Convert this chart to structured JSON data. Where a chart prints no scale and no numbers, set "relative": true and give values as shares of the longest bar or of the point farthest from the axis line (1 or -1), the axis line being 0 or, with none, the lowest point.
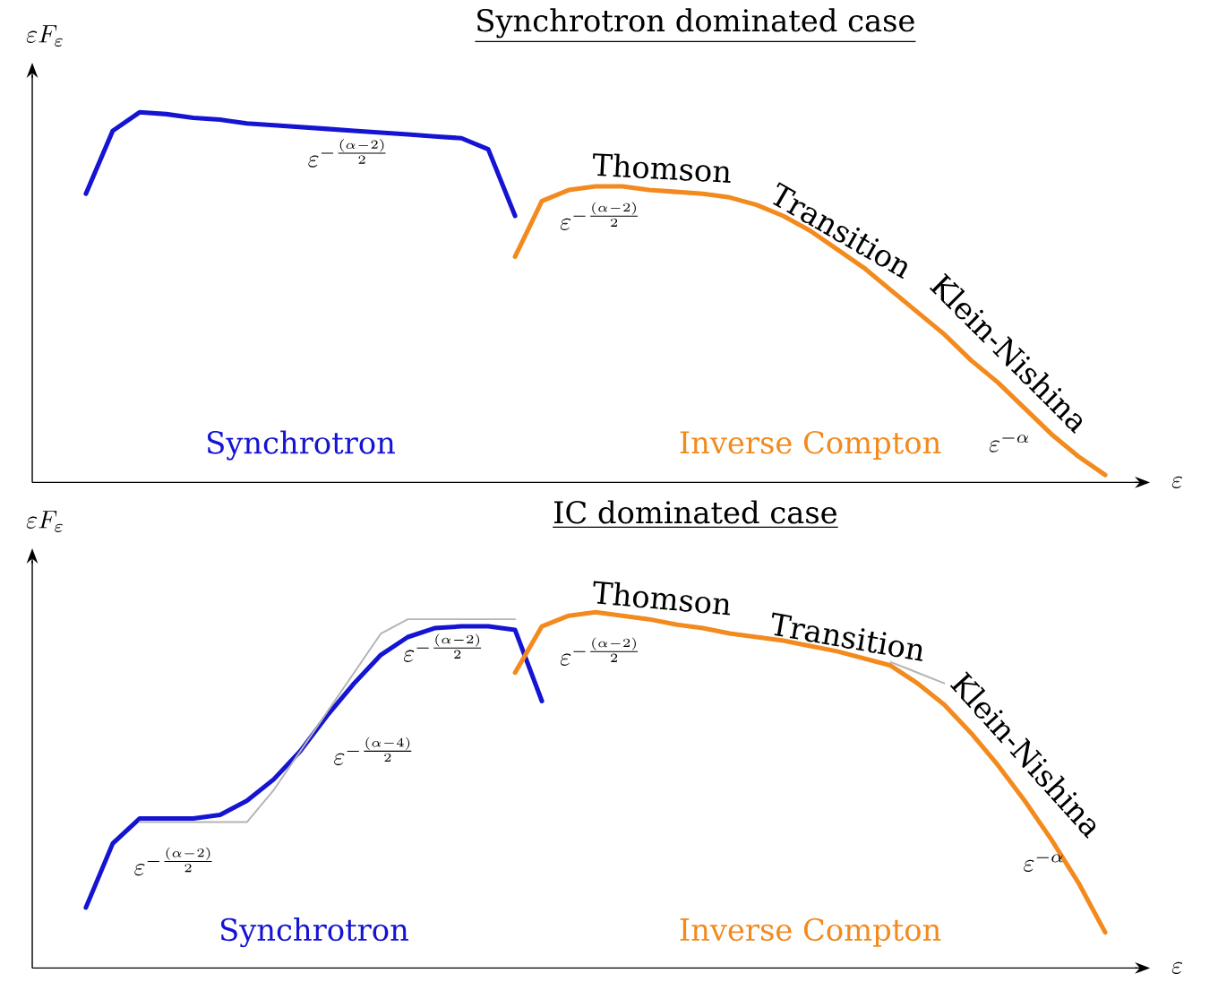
{
  "chart_data": [
    {
      "type": "line",
      "title": "Synchrotron dominated case",
      "xlabel": "\\varepsilon",
      "ylabel": "\\varepsilon F_\\varepsilon",
      "relative": true,
      "categories": [
        null,
        null,
        null,
        null,
        null,
        null,
        null,
        null,
        null,
        null,
        null,
        null,
        null,
        null,
        null,
        null,
        null,
        null,
        null,
        null,
        null,
        null,
        null,
        null,
        null,
        null,
        null,
        null,
        null,
        null,
        null,
        null,
        null,
        null,
        null,
        null,
        null,
        null,
        null,
        null,
        null
      ],
      "series": [
        {
          "name": "Synchrotron",
          "color": "#1414d2",
          "values": [
            null,
            null,
            0.78,
            0.95,
            1,
            0.995,
            0.985,
            0.98,
            0.97,
            0.965,
            0.96,
            0.955,
            0.95,
            0.945,
            0.94,
            0.935,
            0.93,
            0.9,
            0.72,
            null,
            null,
            null,
            null,
            null,
            null,
            null,
            null,
            null,
            null,
            null,
            null,
            null,
            null,
            null,
            null,
            null,
            null,
            null,
            null,
            null,
            null
          ]
        },
        {
          "name": "Inverse Compton",
          "color": "#f28a1e",
          "values": [
            null,
            null,
            null,
            null,
            null,
            null,
            null,
            null,
            null,
            null,
            null,
            null,
            null,
            null,
            null,
            null,
            null,
            null,
            0.61,
            0.76,
            0.79,
            0.8,
            0.8,
            0.79,
            0.785,
            0.78,
            0.77,
            0.75,
            0.72,
            0.68,
            0.63,
            0.58,
            0.52,
            0.46,
            0.4,
            0.33,
            0.27,
            0.2,
            0.13,
            0.07,
            0.02
          ]
        }
      ],
      "annotations": [
        "\\varepsilon^{-\\frac{(\\alpha-2)}{2}}",
        "\\varepsilon^{-\\frac{(\\alpha-2)}{2}}",
        "Thomson",
        "Transition",
        "Klein-Nishina",
        "\\varepsilon^{-\\alpha}"
      ]
    },
    {
      "type": "line",
      "title": "IC dominated case",
      "xlabel": "\\varepsilon",
      "ylabel": "\\varepsilon F_\\varepsilon",
      "relative": true,
      "categories": [
        null,
        null,
        null,
        null,
        null,
        null,
        null,
        null,
        null,
        null,
        null,
        null,
        null,
        null,
        null,
        null,
        null,
        null,
        null,
        null,
        null,
        null,
        null,
        null,
        null,
        null,
        null,
        null,
        null,
        null,
        null,
        null,
        null,
        null,
        null,
        null,
        null,
        null,
        null,
        null,
        null
      ],
      "series": [
        {
          "name": "Synchrotron",
          "color": "#1414d2",
          "values": [
            null,
            null,
            0.17,
            0.35,
            0.42,
            0.42,
            0.42,
            0.43,
            0.47,
            0.53,
            0.61,
            0.71,
            0.8,
            0.88,
            0.93,
            0.955,
            0.96,
            0.96,
            0.95,
            0.75,
            null,
            null,
            null,
            null,
            null,
            null,
            null,
            null,
            null,
            null,
            null,
            null,
            null,
            null,
            null,
            null,
            null,
            null,
            null,
            null,
            null
          ]
        },
        {
          "color": "#b4b4b4",
          "values": [
            null,
            null,
            null,
            null,
            0.41,
            0.41,
            0.41,
            0.41,
            0.41,
            0.5,
            0.61,
            0.72,
            0.83,
            0.94,
            0.98,
            0.98,
            0.98,
            0.98,
            0.98,
            null,
            null,
            null,
            null,
            null,
            null,
            null,
            null,
            null,
            null,
            null,
            null,
            null,
            null,
            null,
            null,
            null,
            null,
            null,
            null,
            null,
            null
          ]
        },
        {
          "color": "#b4b4b4",
          "values": [
            null,
            null,
            null,
            null,
            null,
            null,
            null,
            null,
            null,
            null,
            null,
            null,
            null,
            null,
            null,
            null,
            null,
            null,
            null,
            null,
            null,
            null,
            null,
            null,
            null,
            null,
            null,
            null,
            null,
            null,
            null,
            null,
            0.86,
            0.83,
            0.8,
            null,
            null,
            null,
            null,
            null,
            null
          ]
        },
        {
          "name": "Inverse Compton",
          "color": "#f28a1e",
          "values": [
            null,
            null,
            null,
            null,
            null,
            null,
            null,
            null,
            null,
            null,
            null,
            null,
            null,
            null,
            null,
            null,
            null,
            null,
            0.83,
            0.96,
            0.99,
            1,
            0.99,
            0.98,
            0.965,
            0.955,
            0.94,
            0.93,
            0.92,
            0.905,
            0.89,
            0.87,
            0.85,
            0.8,
            0.74,
            0.66,
            0.57,
            0.47,
            0.36,
            0.24,
            0.1
          ]
        }
      ],
      "annotations": [
        "\\varepsilon^{-\\frac{(\\alpha-2)}{2}}",
        "\\varepsilon^{-\\frac{(\\alpha-4)}{2}}",
        "\\varepsilon^{-\\frac{(\\alpha-2)}{2}}",
        "\\varepsilon^{-\\frac{(\\alpha-2)}{2}}",
        "Thomson",
        "Transition",
        "Klein-Nishina",
        "\\varepsilon^{-\\alpha}"
      ]
    }
  ]
}
